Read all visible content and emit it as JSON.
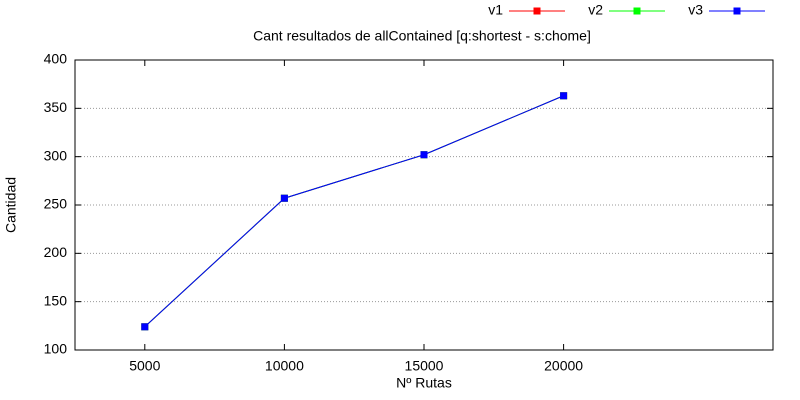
{
  "chart_data": {
    "type": "line",
    "title": "Cant resultados de allContained [q:shortest - s:chome]",
    "xlabel": "Nº Rutas",
    "ylabel": "Cantidad",
    "x": [
      5000,
      10000,
      15000,
      20000
    ],
    "series": [
      {
        "name": "v1",
        "color": "#ff0000",
        "values": [
          124,
          257,
          302,
          363
        ]
      },
      {
        "name": "v2",
        "color": "#00ff00",
        "values": [
          124,
          257,
          302,
          363
        ]
      },
      {
        "name": "v3",
        "color": "#0000ff",
        "values": [
          124,
          257,
          302,
          363
        ]
      }
    ],
    "xlim": [
      2500,
      27500
    ],
    "xticks": [
      5000,
      10000,
      15000,
      20000
    ],
    "ylim": [
      100,
      400
    ],
    "yticks": [
      100,
      150,
      200,
      250,
      300,
      350,
      400
    ],
    "grid": true,
    "legend": "top-right"
  }
}
